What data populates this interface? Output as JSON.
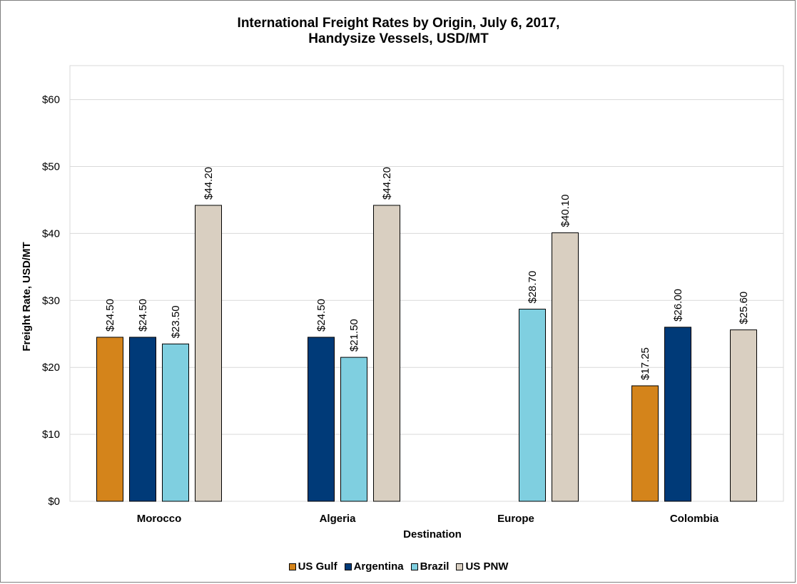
{
  "chart_data": {
    "type": "bar",
    "title_line1": "International Freight Rates by Origin, July 6, 2017,",
    "title_line2": "Handysize Vessels, USD/MT",
    "xlabel": "Destination",
    "ylabel": "Freight Rate, USD/MT",
    "ylim": [
      0,
      65
    ],
    "yticks": [
      0,
      10,
      20,
      30,
      40,
      50,
      60
    ],
    "ytick_labels": [
      "$0",
      "$10",
      "$20",
      "$30",
      "$40",
      "$50",
      "$60"
    ],
    "grid": true,
    "legend_position": "bottom",
    "categories": [
      "Morocco",
      "Algeria",
      "Europe",
      "Colombia"
    ],
    "series": [
      {
        "name": "US Gulf",
        "color": "#D4841B",
        "values": [
          24.5,
          null,
          null,
          17.25
        ],
        "labels": [
          "$24.50",
          null,
          null,
          "$17.25"
        ]
      },
      {
        "name": "Argentina",
        "color": "#003A78",
        "values": [
          24.5,
          24.5,
          null,
          26.0
        ],
        "labels": [
          "$24.50",
          "$24.50",
          null,
          "$26.00"
        ]
      },
      {
        "name": "Brazil",
        "color": "#7FCFE0",
        "values": [
          23.5,
          21.5,
          28.7,
          null
        ],
        "labels": [
          "$23.50",
          "$21.50",
          "$28.70",
          null
        ]
      },
      {
        "name": "US PNW",
        "color": "#D9CFC1",
        "values": [
          44.2,
          44.2,
          40.1,
          25.6
        ],
        "labels": [
          "$44.20",
          "$44.20",
          "$40.10",
          "$25.60"
        ]
      }
    ]
  }
}
